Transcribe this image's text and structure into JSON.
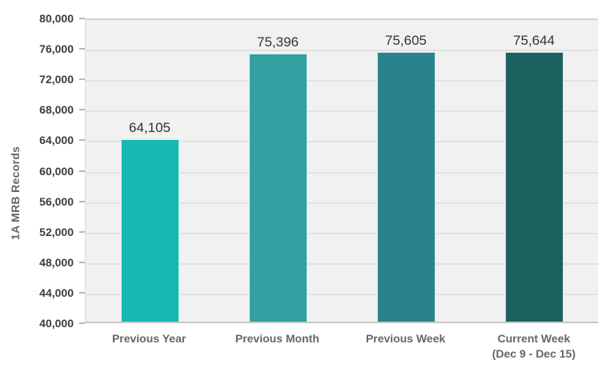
{
  "chart_data": {
    "type": "bar",
    "title": "",
    "ylabel": "1A MRB Records",
    "xlabel": "",
    "categories": [
      {
        "label": "Previous Year",
        "sublabel": ""
      },
      {
        "label": "Previous Month",
        "sublabel": ""
      },
      {
        "label": "Previous Week",
        "sublabel": ""
      },
      {
        "label": "Current Week",
        "sublabel": "(Dec 9 - Dec 15)"
      }
    ],
    "values": [
      64105,
      75396,
      75605,
      75644
    ],
    "value_labels": [
      "64,105",
      "75,396",
      "75,605",
      "75,644"
    ],
    "bar_colors": [
      "#17b8b1",
      "#339fa1",
      "#29828d",
      "#1c615f"
    ],
    "ylim": [
      40000,
      80000
    ],
    "yticks": [
      {
        "value": 80000,
        "label": "80,000"
      },
      {
        "value": 76000,
        "label": "76,000"
      },
      {
        "value": 72000,
        "label": "72,000"
      },
      {
        "value": 68000,
        "label": "68,000"
      },
      {
        "value": 64000,
        "label": "64,000"
      },
      {
        "value": 60000,
        "label": "60,000"
      },
      {
        "value": 56000,
        "label": "56,000"
      },
      {
        "value": 52000,
        "label": "52,000"
      },
      {
        "value": 48000,
        "label": "48,000"
      },
      {
        "value": 44000,
        "label": "44,000"
      },
      {
        "value": 40000,
        "label": "40,000"
      }
    ],
    "grid": true,
    "legend": "none",
    "colors": {
      "plot_background": "#f1f1f1",
      "grid_line": "#e2e2e2",
      "axis_line": "#c6c6c6",
      "tick_label": "#3f3a3c",
      "category_label": "#6e6070",
      "value_label": "#333333"
    }
  }
}
